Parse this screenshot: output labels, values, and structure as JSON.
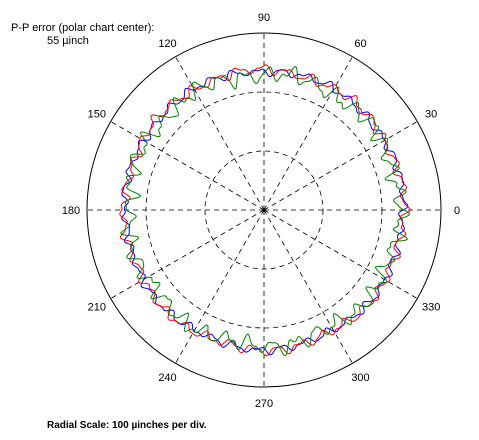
{
  "chart_data": {
    "type": "polar-line",
    "angular_unit": "degrees",
    "angle_ticks": [
      "0",
      "30",
      "60",
      "90",
      "120",
      "150",
      "180",
      "210",
      "240",
      "270",
      "300",
      "330"
    ],
    "radial_ring_count": 3,
    "annotation": {
      "line1": "P-P error (polar chart center):",
      "line2": "55 µinch"
    },
    "footer": "Radial Scale: 100 µinches per div.",
    "series": [
      {
        "color": "#0000ff",
        "r_mean_divisions": 2.36,
        "undulations_per_rev": 36,
        "amplitude_divisions": 0.05
      },
      {
        "color": "#ff0000",
        "r_mean_divisions": 2.37,
        "undulations_per_rev": 36,
        "amplitude_divisions": 0.06
      },
      {
        "color": "#008000",
        "r_mean_divisions": 2.3,
        "undulations_per_rev": 36,
        "amplitude_divisions": 0.1
      }
    ]
  }
}
